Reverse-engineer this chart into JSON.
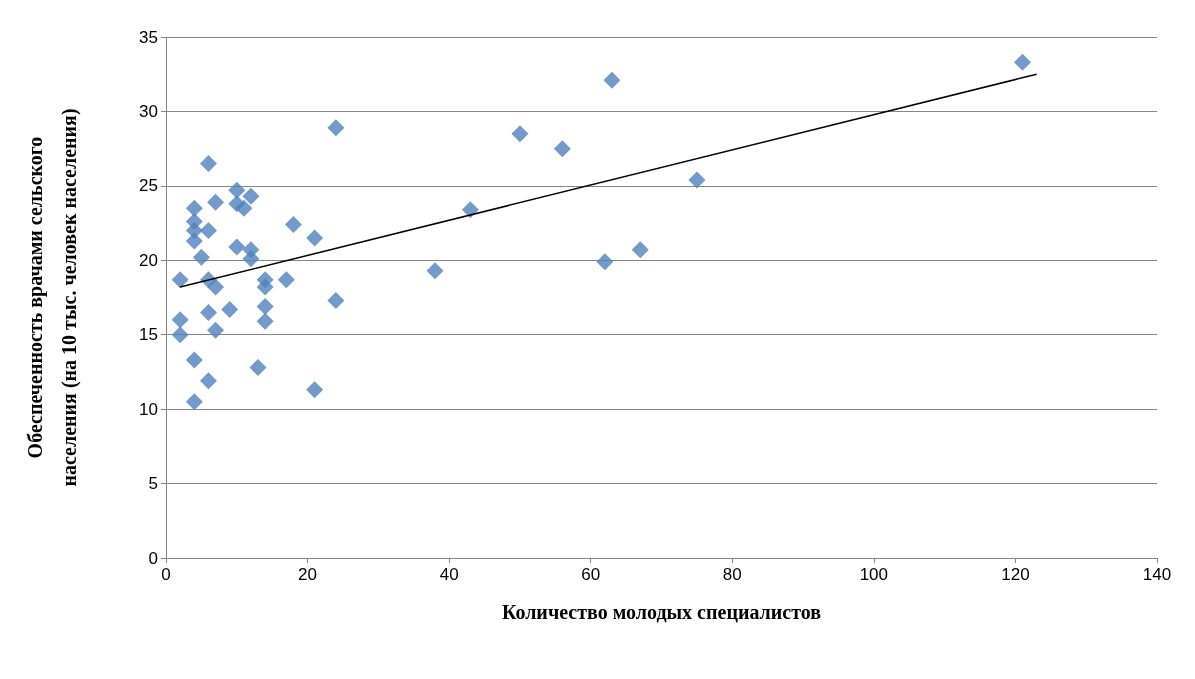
{
  "chart_data": {
    "type": "scatter",
    "xlabel": "Количество молодых специалистов",
    "ylabel": "Обеспеченность врачами сельского населения (на 10 тыс. человек населения)",
    "xlim": [
      0,
      140
    ],
    "xticks": [
      0,
      20,
      40,
      60,
      80,
      100,
      120,
      140
    ],
    "ylim": [
      0,
      35
    ],
    "yticks": [
      0,
      5,
      10,
      15,
      20,
      25,
      30,
      35
    ],
    "grid": "y",
    "marker": "diamond",
    "series": [
      {
        "color": "#4f81bd",
        "x": [
          121,
          63,
          24,
          50,
          56,
          75,
          6,
          10,
          12,
          4,
          7,
          10,
          11,
          43,
          4,
          4,
          6,
          18,
          4,
          21,
          10,
          12,
          5,
          12,
          38,
          62,
          67,
          2,
          6,
          7,
          14,
          14,
          17,
          14,
          24,
          2,
          2,
          6,
          9,
          7,
          14,
          4,
          13,
          6,
          21,
          4
        ],
        "values": [
          33.3,
          32.1,
          28.9,
          28.5,
          27.5,
          25.4,
          26.5,
          24.7,
          24.3,
          23.5,
          23.9,
          23.8,
          23.5,
          23.4,
          22.6,
          22.0,
          22.0,
          22.4,
          21.3,
          21.5,
          20.9,
          20.7,
          20.2,
          20.1,
          19.3,
          19.9,
          20.7,
          18.7,
          18.7,
          18.2,
          18.7,
          18.2,
          18.7,
          16.9,
          17.3,
          16.0,
          15.0,
          16.5,
          16.7,
          15.3,
          15.9,
          13.3,
          12.8,
          11.9,
          11.3,
          10.5
        ]
      },
      {
        "type": "line",
        "color": "#000000",
        "x": [
          2,
          123
        ],
        "values": [
          18.2,
          32.5
        ],
        "marker": "none",
        "line_style": "solid"
      }
    ]
  }
}
